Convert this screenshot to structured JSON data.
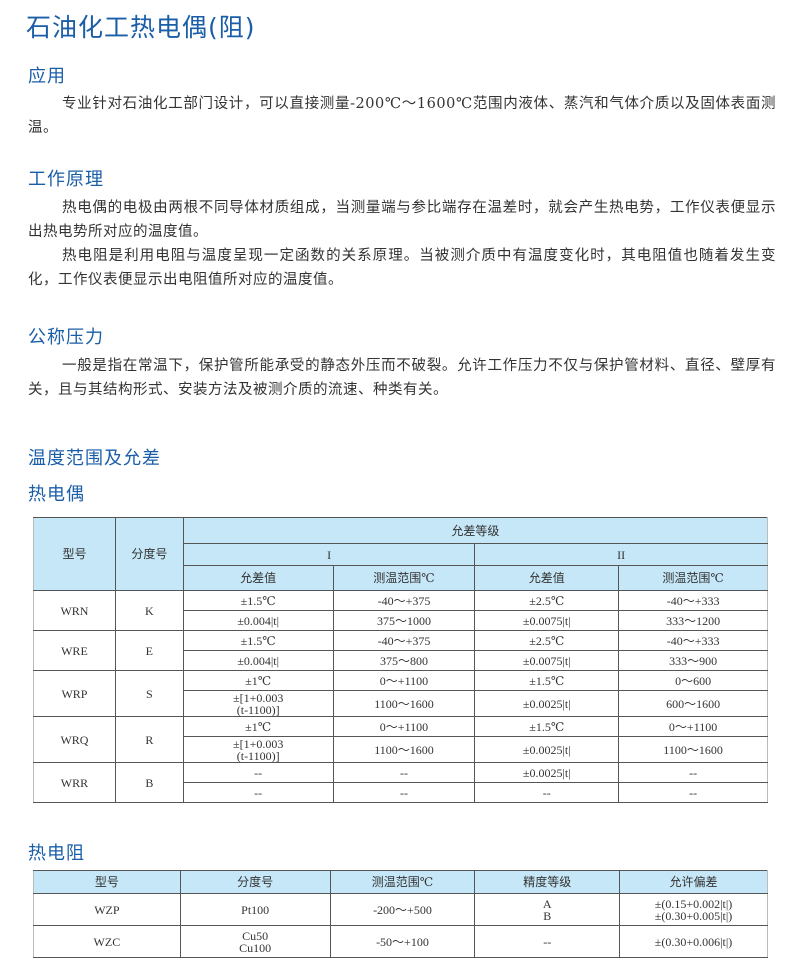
{
  "title": "石油化工热电偶(阻)",
  "sections": {
    "application": {
      "heading": "应用",
      "paragraphs": [
        "专业针对石油化工部门设计，可以直接测量-200℃～1600℃范围内液体、蒸汽和气体介质以及固体表面测温。"
      ]
    },
    "principle": {
      "heading": "工作原理",
      "paragraphs": [
        "热电偶的电极由两根不同导体材质组成，当测量端与参比端存在温差时，就会产生热电势，工作仪表便显示出热电势所对应的温度值。",
        "热电阻是利用电阻与温度呈现一定函数的关系原理。当被测介质中有温度变化时，其电阻值也随着发生变化，工作仪表便显示出电阻值所对应的温度值。"
      ]
    },
    "pressure": {
      "heading": "公称压力",
      "paragraphs": [
        "一般是指在常温下，保护管所能承受的静态外压而不破裂。允许工作压力不仅与保护管材料、直径、壁厚有关，且与其结构形式、安装方法及被测介质的流速、种类有关。"
      ]
    },
    "range": {
      "heading": "温度范围及允差"
    }
  },
  "thermocouple": {
    "heading": "热电偶",
    "headers": {
      "model": "型号",
      "graduation": "分度号",
      "tolerance_class": "允差等级",
      "class1": "I",
      "class2": "II",
      "tol": "允差值",
      "range": "测温范围℃"
    },
    "rows": [
      {
        "model": "WRN",
        "grad": "K",
        "lines": [
          [
            "±1.5℃",
            "-40～+375",
            "±2.5℃",
            "-40～+333"
          ],
          [
            "±0.004|t|",
            "375～1000",
            "±0.0075|t|",
            "333～1200"
          ]
        ]
      },
      {
        "model": "WRE",
        "grad": "E",
        "lines": [
          [
            "±1.5℃",
            "-40～+375",
            "±2.5℃",
            "-40～+333"
          ],
          [
            "±0.004|t|",
            "375～800",
            "±0.0075|t|",
            "333～900"
          ]
        ]
      },
      {
        "model": "WRP",
        "grad": "S",
        "lines": [
          [
            "±1℃",
            "0～+1100",
            "±1.5℃",
            "0～600"
          ],
          [
            "±[1+0.003\n(t-1100)]",
            "1100～1600",
            "±0.0025|t|",
            "600～1600"
          ]
        ]
      },
      {
        "model": "WRQ",
        "grad": "R",
        "lines": [
          [
            "±1℃",
            "0～+1100",
            "±1.5℃",
            "0～+1100"
          ],
          [
            "±[1+0.003\n(t-1100)]",
            "1100～1600",
            "±0.0025|t|",
            "1100～1600"
          ]
        ]
      },
      {
        "model": "WRR",
        "grad": "B",
        "lines": [
          [
            "--",
            "--",
            "±0.0025|t|",
            "--"
          ],
          [
            "--",
            "--",
            "--",
            "--"
          ]
        ]
      }
    ]
  },
  "rtd": {
    "heading": "热电阻",
    "headers": [
      "型号",
      "分度号",
      "测温范围℃",
      "精度等级",
      "允许偏差"
    ],
    "rows": [
      [
        "WZP",
        "Pt100",
        "-200～+500",
        "A\nB",
        "±(0.15+0.002|t|)\n±(0.30+0.005|t|)"
      ],
      [
        "WZC",
        "Cu50\nCu100",
        "-50～+100",
        "--",
        "±(0.30+0.006|t|)"
      ]
    ]
  },
  "colors": {
    "heading": "#1b5ea8",
    "table_header": "#c6e7f7"
  }
}
